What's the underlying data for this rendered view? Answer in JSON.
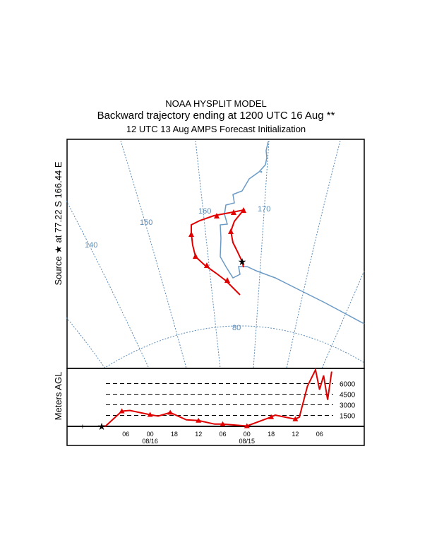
{
  "header": {
    "line1": "NOAA HYSPLIT MODEL",
    "line2": "Backward trajectory ending at 1200 UTC 16 Aug **",
    "line3": "12 UTC 13 Aug    AMPS  Forecast Initialization"
  },
  "source_label": "Source ★ at  77.22 S  166.44 E",
  "map": {
    "meridian_labels": [
      "140",
      "150",
      "160",
      "170"
    ],
    "parallel_labels": [
      "80"
    ],
    "colors": {
      "grid": "#5b8ab5",
      "coast": "#6a9ac6",
      "trajectory": "#e00000",
      "source": "#000000"
    }
  },
  "chart_data": {
    "type": "line",
    "ylabel": "Meters AGL",
    "y_ticks": [
      "1500",
      "3000",
      "4500",
      "6000"
    ],
    "x_ticks": [
      "06",
      "00",
      "18",
      "12",
      "06",
      "00",
      "18",
      "12",
      "06"
    ],
    "x_date_labels": [
      {
        "under": "00",
        "text": "08/16"
      },
      {
        "under": "00",
        "text": "08/15"
      }
    ],
    "x_direction": "backward in time from 1200 UTC 16 Aug",
    "series": [
      {
        "points": [
          [
            "08/16 12:00",
            0
          ],
          [
            "08/16 11:00",
            0
          ],
          [
            "08/16 07:00",
            2100
          ],
          [
            "08/16 05:00",
            2200
          ],
          [
            "08/16 00:00",
            1600
          ],
          [
            "08/15 22:00",
            1400
          ],
          [
            "08/15 19:00",
            1900
          ],
          [
            "08/15 15:00",
            870
          ],
          [
            "08/15 12:00",
            770
          ],
          [
            "08/15 08:00",
            270
          ],
          [
            "08/15 06:00",
            270
          ],
          [
            "08/15 00:00",
            0
          ],
          [
            "08/14 18:00",
            1270
          ],
          [
            "08/14 17:00",
            1540
          ],
          [
            "08/14 12:00",
            970
          ],
          [
            "08/14 11:00",
            1270
          ],
          [
            "08/14 09:00",
            5640
          ],
          [
            "08/14 07:00",
            8040
          ],
          [
            "08/14 06:00",
            5140
          ],
          [
            "08/14 05:00",
            7140
          ],
          [
            "08/14 04:00",
            3700
          ],
          [
            "08/14 03:00",
            7700
          ]
        ]
      }
    ]
  }
}
